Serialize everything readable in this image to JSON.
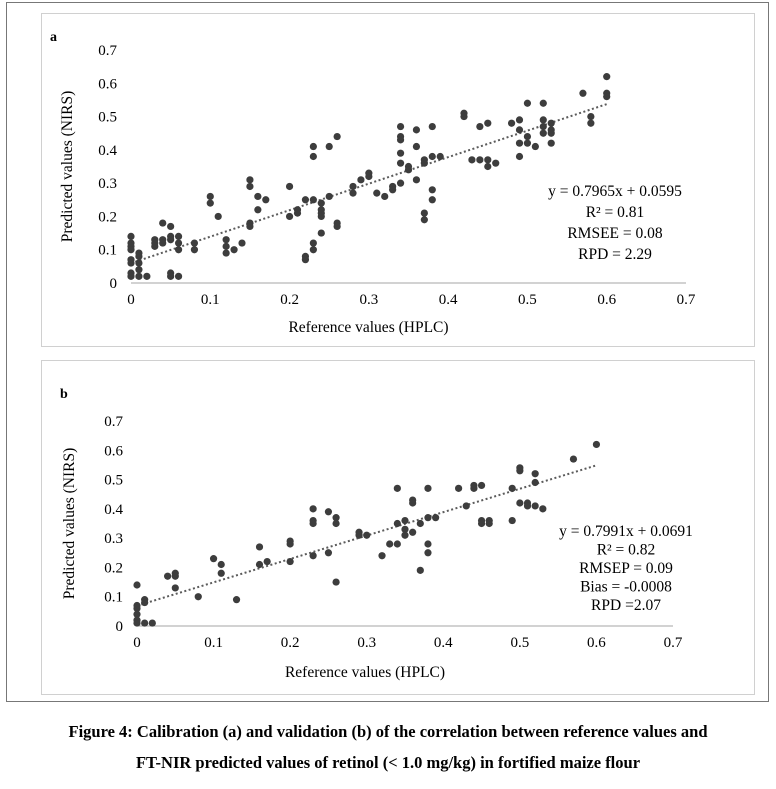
{
  "caption": {
    "line1": "Figure 4: Calibration (a) and validation (b) of the correlation between reference values and",
    "line2": "FT-NIR predicted values of retinol (< 1.0 mg/kg) in fortified maize flour"
  },
  "colors": {
    "points": "#3d3d3d",
    "trendline": "#5b5b5b",
    "axis": "#a6a6a6"
  },
  "chart_data": [
    {
      "type": "scatter",
      "panel_label": "a",
      "xlabel": "Reference values (HPLC)",
      "ylabel": "Predicted values (NIRS)",
      "xlim": [
        0,
        0.7
      ],
      "ylim": [
        0,
        0.7
      ],
      "x_ticks": [
        "0",
        "0.1",
        "0.2",
        "0.3",
        "0.4",
        "0.5",
        "0.6",
        "0.7"
      ],
      "y_ticks": [
        "0",
        "0.1",
        "0.2",
        "0.3",
        "0.4",
        "0.5",
        "0.6",
        "0.7"
      ],
      "grid": false,
      "trendline": {
        "slope": 0.7965,
        "intercept": 0.0595,
        "style": "dotted"
      },
      "annotations": [
        "y = 0.7965x + 0.0595",
        "R² = 0.81",
        "RMSEE = 0.08",
        "RPD = 2.29"
      ],
      "points": [
        [
          0,
          0.14
        ],
        [
          0,
          0.12
        ],
        [
          0,
          0.11
        ],
        [
          0,
          0.1
        ],
        [
          0,
          0.07
        ],
        [
          0,
          0.06
        ],
        [
          0,
          0.03
        ],
        [
          0,
          0.02
        ],
        [
          0.01,
          0.09
        ],
        [
          0.01,
          0.08
        ],
        [
          0.01,
          0.06
        ],
        [
          0.01,
          0.04
        ],
        [
          0.01,
          0.02
        ],
        [
          0.02,
          0.02
        ],
        [
          0.03,
          0.13
        ],
        [
          0.03,
          0.12
        ],
        [
          0.03,
          0.11
        ],
        [
          0.04,
          0.18
        ],
        [
          0.04,
          0.13
        ],
        [
          0.04,
          0.12
        ],
        [
          0.05,
          0.17
        ],
        [
          0.05,
          0.14
        ],
        [
          0.05,
          0.13
        ],
        [
          0.05,
          0.03
        ],
        [
          0.05,
          0.02
        ],
        [
          0.06,
          0.14
        ],
        [
          0.06,
          0.12
        ],
        [
          0.06,
          0.1
        ],
        [
          0.06,
          0.02
        ],
        [
          0.08,
          0.12
        ],
        [
          0.08,
          0.1
        ],
        [
          0.1,
          0.26
        ],
        [
          0.1,
          0.24
        ],
        [
          0.11,
          0.2
        ],
        [
          0.12,
          0.13
        ],
        [
          0.12,
          0.11
        ],
        [
          0.12,
          0.09
        ],
        [
          0.13,
          0.1
        ],
        [
          0.14,
          0.12
        ],
        [
          0.15,
          0.31
        ],
        [
          0.15,
          0.29
        ],
        [
          0.15,
          0.18
        ],
        [
          0.15,
          0.17
        ],
        [
          0.16,
          0.26
        ],
        [
          0.16,
          0.22
        ],
        [
          0.17,
          0.25
        ],
        [
          0.2,
          0.29
        ],
        [
          0.2,
          0.2
        ],
        [
          0.21,
          0.22
        ],
        [
          0.21,
          0.21
        ],
        [
          0.22,
          0.25
        ],
        [
          0.22,
          0.08
        ],
        [
          0.22,
          0.07
        ],
        [
          0.23,
          0.41
        ],
        [
          0.23,
          0.38
        ],
        [
          0.23,
          0.25
        ],
        [
          0.23,
          0.12
        ],
        [
          0.23,
          0.1
        ],
        [
          0.24,
          0.24
        ],
        [
          0.24,
          0.22
        ],
        [
          0.24,
          0.21
        ],
        [
          0.24,
          0.2
        ],
        [
          0.24,
          0.15
        ],
        [
          0.25,
          0.41
        ],
        [
          0.25,
          0.26
        ],
        [
          0.26,
          0.44
        ],
        [
          0.26,
          0.18
        ],
        [
          0.26,
          0.17
        ],
        [
          0.28,
          0.29
        ],
        [
          0.28,
          0.27
        ],
        [
          0.29,
          0.31
        ],
        [
          0.3,
          0.33
        ],
        [
          0.3,
          0.32
        ],
        [
          0.31,
          0.27
        ],
        [
          0.32,
          0.26
        ],
        [
          0.33,
          0.29
        ],
        [
          0.33,
          0.28
        ],
        [
          0.34,
          0.47
        ],
        [
          0.34,
          0.44
        ],
        [
          0.34,
          0.43
        ],
        [
          0.34,
          0.39
        ],
        [
          0.34,
          0.36
        ],
        [
          0.34,
          0.3
        ],
        [
          0.35,
          0.35
        ],
        [
          0.35,
          0.34
        ],
        [
          0.36,
          0.46
        ],
        [
          0.36,
          0.41
        ],
        [
          0.36,
          0.31
        ],
        [
          0.37,
          0.37
        ],
        [
          0.37,
          0.36
        ],
        [
          0.37,
          0.21
        ],
        [
          0.37,
          0.19
        ],
        [
          0.38,
          0.47
        ],
        [
          0.38,
          0.38
        ],
        [
          0.38,
          0.28
        ],
        [
          0.38,
          0.25
        ],
        [
          0.39,
          0.38
        ],
        [
          0.42,
          0.51
        ],
        [
          0.42,
          0.5
        ],
        [
          0.43,
          0.37
        ],
        [
          0.44,
          0.47
        ],
        [
          0.44,
          0.37
        ],
        [
          0.45,
          0.48
        ],
        [
          0.45,
          0.37
        ],
        [
          0.45,
          0.35
        ],
        [
          0.46,
          0.36
        ],
        [
          0.48,
          0.48
        ],
        [
          0.49,
          0.49
        ],
        [
          0.49,
          0.46
        ],
        [
          0.49,
          0.42
        ],
        [
          0.49,
          0.38
        ],
        [
          0.5,
          0.54
        ],
        [
          0.5,
          0.44
        ],
        [
          0.5,
          0.42
        ],
        [
          0.51,
          0.41
        ],
        [
          0.52,
          0.54
        ],
        [
          0.52,
          0.49
        ],
        [
          0.52,
          0.47
        ],
        [
          0.52,
          0.45
        ],
        [
          0.53,
          0.48
        ],
        [
          0.53,
          0.46
        ],
        [
          0.53,
          0.45
        ],
        [
          0.53,
          0.42
        ],
        [
          0.57,
          0.57
        ],
        [
          0.58,
          0.5
        ],
        [
          0.58,
          0.48
        ],
        [
          0.6,
          0.62
        ],
        [
          0.6,
          0.57
        ],
        [
          0.6,
          0.56
        ]
      ]
    },
    {
      "type": "scatter",
      "panel_label": "b",
      "xlabel": "Reference values (HPLC)",
      "ylabel": "Predicted values (NIRS)",
      "xlim": [
        0,
        0.7
      ],
      "ylim": [
        0,
        0.7
      ],
      "x_ticks": [
        "0",
        "0.1",
        "0.2",
        "0.3",
        "0.4",
        "0.5",
        "0.6",
        "0.7"
      ],
      "y_ticks": [
        "0",
        "0.1",
        "0.2",
        "0.3",
        "0.4",
        "0.5",
        "0.6",
        "0.7"
      ],
      "grid": false,
      "trendline": {
        "slope": 0.7991,
        "intercept": 0.0691,
        "style": "dotted"
      },
      "annotations": [
        "y = 0.7991x + 0.0691",
        "R² = 0.82",
        "RMSEP = 0.09",
        "Bias = -0.0008",
        "RPD =2.07"
      ],
      "points": [
        [
          0,
          0.14
        ],
        [
          0,
          0.07
        ],
        [
          0,
          0.06
        ],
        [
          0,
          0.04
        ],
        [
          0,
          0.02
        ],
        [
          0,
          0.01
        ],
        [
          0.01,
          0.09
        ],
        [
          0.01,
          0.08
        ],
        [
          0.01,
          0.01
        ],
        [
          0.02,
          0.01
        ],
        [
          0.04,
          0.17
        ],
        [
          0.05,
          0.18
        ],
        [
          0.05,
          0.17
        ],
        [
          0.05,
          0.13
        ],
        [
          0.08,
          0.1
        ],
        [
          0.1,
          0.23
        ],
        [
          0.11,
          0.21
        ],
        [
          0.11,
          0.18
        ],
        [
          0.13,
          0.09
        ],
        [
          0.16,
          0.27
        ],
        [
          0.16,
          0.21
        ],
        [
          0.17,
          0.22
        ],
        [
          0.2,
          0.29
        ],
        [
          0.2,
          0.28
        ],
        [
          0.2,
          0.22
        ],
        [
          0.23,
          0.4
        ],
        [
          0.23,
          0.36
        ],
        [
          0.23,
          0.35
        ],
        [
          0.23,
          0.24
        ],
        [
          0.25,
          0.39
        ],
        [
          0.25,
          0.25
        ],
        [
          0.26,
          0.37
        ],
        [
          0.26,
          0.35
        ],
        [
          0.26,
          0.15
        ],
        [
          0.29,
          0.32
        ],
        [
          0.29,
          0.31
        ],
        [
          0.3,
          0.31
        ],
        [
          0.32,
          0.24
        ],
        [
          0.33,
          0.28
        ],
        [
          0.34,
          0.47
        ],
        [
          0.34,
          0.35
        ],
        [
          0.34,
          0.28
        ],
        [
          0.35,
          0.36
        ],
        [
          0.35,
          0.33
        ],
        [
          0.35,
          0.31
        ],
        [
          0.36,
          0.43
        ],
        [
          0.36,
          0.42
        ],
        [
          0.36,
          0.32
        ],
        [
          0.37,
          0.35
        ],
        [
          0.37,
          0.19
        ],
        [
          0.38,
          0.47
        ],
        [
          0.38,
          0.37
        ],
        [
          0.38,
          0.28
        ],
        [
          0.38,
          0.25
        ],
        [
          0.39,
          0.37
        ],
        [
          0.42,
          0.47
        ],
        [
          0.43,
          0.41
        ],
        [
          0.44,
          0.48
        ],
        [
          0.44,
          0.47
        ],
        [
          0.45,
          0.48
        ],
        [
          0.45,
          0.36
        ],
        [
          0.45,
          0.35
        ],
        [
          0.46,
          0.36
        ],
        [
          0.46,
          0.35
        ],
        [
          0.49,
          0.47
        ],
        [
          0.49,
          0.36
        ],
        [
          0.5,
          0.54
        ],
        [
          0.5,
          0.53
        ],
        [
          0.5,
          0.42
        ],
        [
          0.51,
          0.42
        ],
        [
          0.51,
          0.41
        ],
        [
          0.52,
          0.52
        ],
        [
          0.52,
          0.49
        ],
        [
          0.52,
          0.41
        ],
        [
          0.53,
          0.4
        ],
        [
          0.57,
          0.57
        ],
        [
          0.6,
          0.62
        ]
      ]
    }
  ]
}
